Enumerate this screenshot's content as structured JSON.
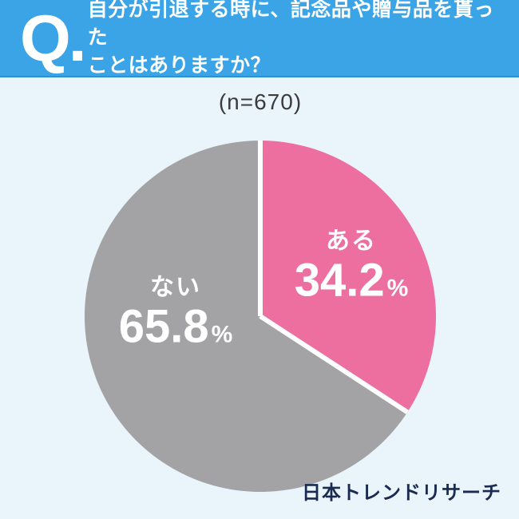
{
  "header": {
    "q_mark": "Q.",
    "question_line1": "自分が引退する時に、記念品や贈与品を貰った",
    "question_line2": "ことはありますか？"
  },
  "chart_data": {
    "type": "pie",
    "title": "自分が引退する時に、記念品や贈与品を貰ったことはありますか？",
    "sample_label": "(n=670)",
    "sample_size": 670,
    "start_angle_deg": 0,
    "direction": "clockwise",
    "gap_color": "#FFFFFF",
    "slices": [
      {
        "label": "ある",
        "value": 34.2,
        "unit": "%",
        "color": "#EC6FA0"
      },
      {
        "label": "ない",
        "value": 65.8,
        "unit": "%",
        "color": "#A3A3A5"
      }
    ]
  },
  "footer": {
    "brand": "日本トレンドリサーチ"
  },
  "colors": {
    "header_background": "#3BA4E6",
    "page_background": "#E9F4FB",
    "question_text": "#FFFFFF",
    "sample_text": "#3B3B3B",
    "callout_text": "#FFFFFF",
    "brand_text": "#1A2A50"
  }
}
